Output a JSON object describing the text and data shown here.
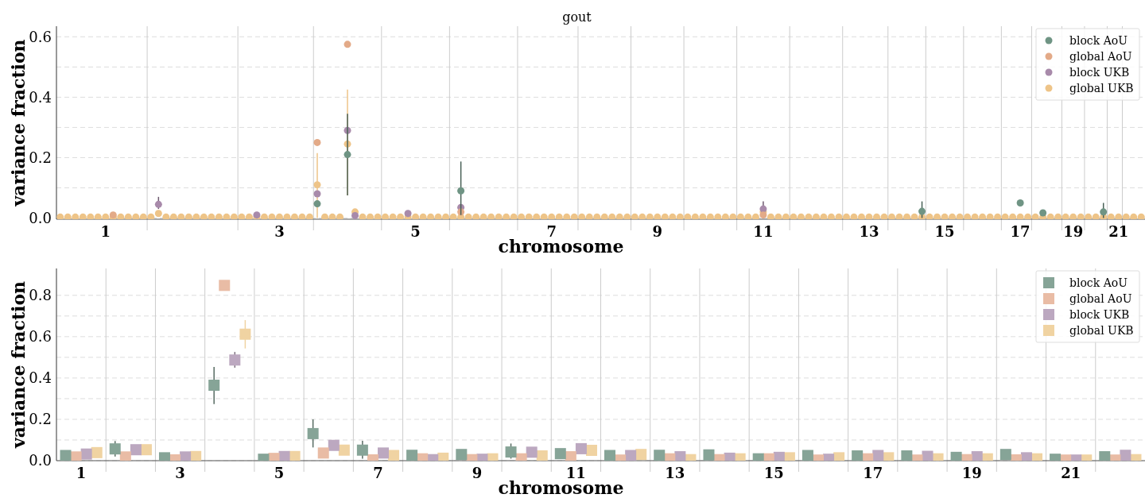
{
  "chart_data": [
    {
      "type": "scatter",
      "title": "gout",
      "xlabel": "chromosome",
      "ylabel": "variance fraction",
      "marker": "circle",
      "legend": "top right",
      "grid": "y",
      "categories": [
        null,
        null,
        null,
        null,
        null,
        null,
        "1",
        null,
        null,
        null,
        null,
        null,
        null,
        null,
        null,
        null,
        null,
        null,
        null,
        null,
        null,
        null,
        null,
        null,
        null,
        null,
        null,
        null,
        null,
        "3",
        null,
        null,
        null,
        null,
        null,
        null,
        null,
        null,
        null,
        null,
        null,
        null,
        null,
        null,
        null,
        null,
        null,
        "5",
        null,
        null,
        null,
        null,
        null,
        null,
        null,
        null,
        null,
        null,
        null,
        null,
        null,
        null,
        null,
        null,
        null,
        "7",
        null,
        null,
        null,
        null,
        null,
        null,
        null,
        null,
        null,
        null,
        null,
        null,
        null,
        "9",
        null,
        null,
        null,
        null,
        null,
        null,
        null,
        null,
        null,
        null,
        null,
        null,
        null,
        "11",
        null,
        null,
        null,
        null,
        null,
        null,
        null,
        null,
        null,
        null,
        null,
        null,
        null,
        "13",
        null,
        null,
        null,
        null,
        null,
        null,
        null,
        null,
        null,
        "15",
        null,
        null,
        null,
        null,
        null,
        null,
        null,
        null,
        null,
        "17",
        null,
        null,
        null,
        null,
        null,
        null,
        "19",
        null,
        null,
        null,
        null,
        null,
        "21",
        null,
        null,
        null
      ],
      "ylim": [
        -0.004,
        0.635
      ],
      "yticks": [
        {
          "value": 0,
          "label": "0.0"
        },
        {
          "value": 0.1,
          "label": null
        },
        {
          "value": 0.2,
          "label": "0.2"
        },
        {
          "value": 0.3,
          "label": null
        },
        {
          "value": 0.4,
          "label": "0.4"
        },
        {
          "value": 0.5,
          "label": null
        },
        {
          "value": 0.6,
          "label": "0.6"
        }
      ],
      "series": [
        {
          "name": "block AoU",
          "color": "#6f9484",
          "values": [
            null,
            null,
            null,
            null,
            null,
            null,
            null,
            null,
            null,
            null,
            null,
            null,
            null,
            null,
            null,
            null,
            null,
            null,
            null,
            null,
            null,
            null,
            null,
            null,
            null,
            null,
            null,
            null,
            null,
            null,
            null,
            null,
            null,
            null,
            0.047,
            null,
            null,
            null,
            0.21,
            null,
            null,
            null,
            null,
            null,
            null,
            null,
            null,
            null,
            null,
            null,
            null,
            null,
            null,
            0.09,
            null,
            null,
            null,
            null,
            null,
            null,
            null,
            null,
            null,
            null,
            null,
            null,
            null,
            null,
            null,
            null,
            null,
            null,
            null,
            null,
            null,
            null,
            null,
            null,
            null,
            null,
            null,
            null,
            null,
            null,
            null,
            null,
            null,
            null,
            null,
            null,
            null,
            null,
            null,
            null,
            null,
            null,
            null,
            null,
            null,
            null,
            null,
            null,
            null,
            null,
            null,
            null,
            null,
            null,
            null,
            null,
            null,
            null,
            null,
            null,
            0.022,
            null,
            null,
            null,
            null,
            null,
            null,
            null,
            null,
            null,
            null,
            null,
            null,
            0.05,
            null,
            null,
            0.017,
            null,
            null,
            null,
            null,
            null,
            null,
            null,
            0.02,
            null,
            null,
            null,
            null,
            null
          ],
          "errors": [
            null,
            null,
            null,
            null,
            null,
            null,
            null,
            null,
            null,
            null,
            null,
            null,
            null,
            null,
            null,
            null,
            null,
            null,
            null,
            null,
            null,
            null,
            null,
            null,
            null,
            null,
            null,
            null,
            null,
            null,
            null,
            null,
            null,
            null,
            null,
            null,
            null,
            null,
            [
              0.075,
              0.345
            ],
            null,
            null,
            null,
            null,
            null,
            null,
            null,
            null,
            null,
            null,
            null,
            null,
            null,
            null,
            [
              0.01,
              0.187
            ],
            null,
            null,
            null,
            null,
            null,
            null,
            null,
            null,
            null,
            null,
            null,
            null,
            null,
            null,
            null,
            null,
            null,
            null,
            null,
            null,
            null,
            null,
            null,
            null,
            null,
            null,
            null,
            null,
            null,
            null,
            null,
            null,
            null,
            null,
            null,
            null,
            null,
            null,
            null,
            null,
            null,
            null,
            null,
            null,
            null,
            null,
            null,
            null,
            null,
            null,
            null,
            null,
            null,
            null,
            null,
            null,
            null,
            null,
            null,
            null,
            [
              0,
              0.055
            ],
            null,
            null,
            null,
            null,
            null,
            null,
            null,
            null,
            null,
            null,
            null,
            null,
            null,
            null,
            null,
            null,
            null,
            null,
            null,
            null,
            null,
            null,
            null,
            [
              0,
              0.05
            ],
            null,
            null,
            null,
            null,
            null
          ]
        },
        {
          "name": "global AoU",
          "color": "#e3aa88",
          "values": [
            null,
            null,
            null,
            null,
            null,
            null,
            null,
            0.01,
            null,
            null,
            null,
            null,
            null,
            null,
            null,
            null,
            null,
            null,
            null,
            null,
            null,
            null,
            null,
            null,
            null,
            null,
            null,
            null,
            null,
            null,
            null,
            null,
            null,
            null,
            0.25,
            null,
            null,
            null,
            0.575,
            null,
            null,
            null,
            null,
            null,
            null,
            null,
            null,
            null,
            null,
            null,
            null,
            null,
            null,
            0.02,
            null,
            null,
            null,
            null,
            null,
            null,
            null,
            null,
            null,
            null,
            null,
            null,
            null,
            null,
            null,
            null,
            null,
            null,
            null,
            null,
            null,
            null,
            null,
            null,
            null,
            null,
            null,
            null,
            null,
            null,
            null,
            null,
            null,
            null,
            null,
            null,
            null,
            null,
            null,
            0.01,
            null,
            null,
            null,
            null,
            null,
            null,
            null,
            null,
            null,
            null,
            null,
            null,
            null,
            null,
            null,
            null,
            null,
            null,
            null,
            null,
            null,
            null,
            null,
            null,
            null,
            null,
            null,
            null,
            null,
            null,
            null,
            null,
            null,
            null,
            null,
            null,
            null,
            null,
            null,
            null,
            null,
            null,
            null,
            null,
            null,
            null,
            null,
            null,
            null,
            null
          ]
        },
        {
          "name": "block UKB",
          "color": "#a88aaa",
          "values": [
            null,
            null,
            null,
            null,
            null,
            null,
            null,
            null,
            null,
            null,
            null,
            null,
            null,
            0.045,
            null,
            null,
            null,
            null,
            null,
            null,
            null,
            null,
            null,
            null,
            null,
            null,
            0.01,
            null,
            null,
            null,
            null,
            null,
            null,
            null,
            0.08,
            null,
            null,
            null,
            0.29,
            0.008,
            null,
            null,
            null,
            null,
            null,
            null,
            0.015,
            null,
            null,
            null,
            null,
            null,
            null,
            0.035,
            null,
            null,
            null,
            null,
            null,
            null,
            null,
            null,
            null,
            null,
            null,
            null,
            null,
            null,
            null,
            null,
            null,
            null,
            null,
            null,
            null,
            null,
            null,
            null,
            null,
            null,
            null,
            null,
            null,
            null,
            null,
            null,
            null,
            null,
            null,
            null,
            null,
            null,
            null,
            0.03,
            null,
            null,
            null,
            null,
            null,
            null,
            null,
            null,
            null,
            null,
            null,
            null,
            null,
            null,
            null,
            null,
            null,
            null,
            null,
            null,
            null,
            null,
            null,
            null,
            null,
            null,
            null,
            null,
            null,
            null,
            null,
            null,
            null,
            null,
            null,
            null,
            null,
            null,
            null,
            null,
            null,
            null,
            null,
            null,
            null,
            null,
            null,
            null,
            null,
            null
          ],
          "errors": [
            null,
            null,
            null,
            null,
            null,
            null,
            null,
            null,
            null,
            null,
            null,
            null,
            null,
            [
              0.03,
              0.07
            ],
            null,
            null,
            null,
            null,
            null,
            null,
            null,
            null,
            null,
            null,
            null,
            null,
            null,
            null,
            null,
            null,
            null,
            null,
            null,
            null,
            null,
            null,
            null,
            null,
            null,
            null,
            null,
            null,
            null,
            null,
            null,
            null,
            null,
            null,
            null,
            null,
            null,
            null,
            null,
            null,
            null,
            null,
            null,
            null,
            null,
            null,
            null,
            null,
            null,
            null,
            null,
            null,
            null,
            null,
            null,
            null,
            null,
            null,
            null,
            null,
            null,
            null,
            null,
            null,
            null,
            null,
            null,
            null,
            null,
            null,
            null,
            null,
            null,
            null,
            null,
            null,
            null,
            null,
            null,
            [
              0.01,
              0.055
            ],
            null,
            null,
            null,
            null,
            null,
            null,
            null,
            null,
            null,
            null,
            null,
            null,
            null,
            null,
            null,
            null,
            null,
            null,
            null,
            null,
            null,
            null,
            null,
            null,
            null,
            null,
            null,
            null,
            null,
            null,
            null,
            null,
            null,
            null,
            null,
            null,
            null,
            null,
            null,
            null,
            null,
            null,
            null,
            null,
            null,
            null,
            null,
            null,
            null,
            null
          ]
        },
        {
          "name": "global UKB",
          "color": "#eec488",
          "values": [
            0.003,
            0.003,
            0.003,
            0.003,
            0.003,
            0.003,
            0.003,
            0.003,
            0.003,
            0.003,
            0.003,
            0.003,
            0.003,
            0.015,
            0.003,
            0.003,
            0.003,
            0.003,
            0.003,
            0.003,
            0.003,
            0.003,
            0.003,
            0.003,
            0.003,
            0.003,
            0.003,
            0.003,
            0.003,
            0.003,
            0.003,
            0.003,
            0.003,
            0.003,
            0.11,
            0.003,
            0.003,
            0.003,
            0.245,
            0.02,
            0.003,
            0.003,
            0.003,
            0.003,
            0.003,
            0.003,
            0.003,
            0.003,
            0.003,
            0.003,
            0.003,
            0.003,
            0.003,
            0.003,
            0.003,
            0.003,
            0.003,
            0.003,
            0.003,
            0.003,
            0.003,
            0.003,
            0.003,
            0.003,
            0.003,
            0.003,
            0.003,
            0.003,
            0.003,
            0.003,
            0.003,
            0.003,
            0.003,
            0.003,
            0.003,
            0.003,
            0.003,
            0.003,
            0.003,
            0.003,
            0.003,
            0.003,
            0.003,
            0.003,
            0.003,
            0.003,
            0.003,
            0.003,
            0.003,
            0.003,
            0.003,
            0.003,
            0.003,
            0.02,
            0.003,
            0.003,
            0.003,
            0.003,
            0.003,
            0.003,
            0.003,
            0.003,
            0.003,
            0.003,
            0.003,
            0.003,
            0.003,
            0.003,
            0.003,
            0.003,
            0.003,
            0.003,
            0.003,
            0.003,
            0.003,
            0.003,
            0.003,
            0.003,
            0.003,
            0.003,
            0.003,
            0.003,
            0.003,
            0.003,
            0.003,
            0.003,
            0.003,
            0.003,
            0.003,
            0.003,
            0.003,
            0.003,
            0.003,
            0.003,
            0.003,
            0.003,
            0.003,
            0.003,
            0.003,
            0.003,
            0.003,
            0.003,
            0.003,
            0.003
          ],
          "errors": [
            null,
            null,
            null,
            null,
            null,
            null,
            null,
            null,
            null,
            null,
            null,
            null,
            null,
            null,
            null,
            null,
            null,
            null,
            null,
            null,
            null,
            null,
            null,
            null,
            null,
            null,
            null,
            null,
            null,
            null,
            null,
            null,
            null,
            null,
            [
              0,
              0.215
            ],
            null,
            null,
            null,
            [
              0.075,
              0.425
            ],
            null,
            null,
            null,
            null,
            null,
            null,
            null,
            null,
            null,
            null,
            null,
            null,
            null,
            null,
            null,
            null,
            null,
            null,
            null,
            null,
            null,
            null,
            null,
            null,
            null,
            null,
            null,
            null,
            null,
            null,
            null,
            null,
            null,
            null,
            null,
            null,
            null,
            null,
            null,
            null,
            null,
            null,
            null,
            null,
            null,
            null,
            null,
            null,
            null,
            null,
            null,
            null,
            null,
            null,
            null,
            null,
            null,
            null,
            null,
            null,
            null,
            null,
            null,
            null,
            null,
            null,
            null,
            null,
            null,
            null,
            null,
            null,
            null,
            null,
            null,
            null,
            null,
            null,
            null,
            null,
            null,
            null,
            null,
            null,
            null,
            null,
            null,
            null,
            null,
            null,
            null,
            null,
            null,
            null,
            null,
            null,
            null,
            null,
            null,
            null,
            null,
            null,
            null,
            null,
            null
          ]
        }
      ]
    },
    {
      "type": "scatter",
      "xlabel": "chromosome",
      "ylabel": "variance fraction",
      "marker": "square",
      "legend": "top right",
      "grid": true,
      "categories": [
        "1",
        null,
        "3",
        null,
        "5",
        null,
        "7",
        null,
        "9",
        null,
        "11",
        null,
        "13",
        null,
        "15",
        null,
        "17",
        null,
        "19",
        null,
        "21",
        null
      ],
      "ylim": [
        0,
        0.93
      ],
      "yticks": [
        {
          "value": 0,
          "label": "0.0"
        },
        {
          "value": 0.1,
          "label": null
        },
        {
          "value": 0.2,
          "label": "0.2"
        },
        {
          "value": 0.3,
          "label": null
        },
        {
          "value": 0.4,
          "label": "0.4"
        },
        {
          "value": 0.5,
          "label": null
        },
        {
          "value": 0.6,
          "label": "0.6"
        },
        {
          "value": 0.7,
          "label": null
        },
        {
          "value": 0.8,
          "label": "0.8"
        }
      ],
      "series": [
        {
          "name": "block AoU",
          "color": "#86a497",
          "values": [
            0.025,
            0.057,
            0.014,
            0.365,
            0.007,
            0.131,
            0.051,
            0.026,
            0.03,
            0.042,
            0.034,
            0.025,
            0.026,
            0.028,
            0.009,
            0.025,
            0.023,
            0.023,
            0.016,
            0.03,
            0.007,
            0.019
          ],
          "errors": [
            null,
            [
              0.02,
              0.095
            ],
            null,
            [
              0.274,
              0.453
            ],
            null,
            [
              0.064,
              0.2
            ],
            [
              0.01,
              0.096
            ],
            null,
            null,
            [
              0.01,
              0.083
            ],
            null,
            null,
            null,
            null,
            null,
            null,
            null,
            null,
            null,
            null,
            null,
            null
          ]
        },
        {
          "name": "global AoU",
          "color": "#e9bca5",
          "values": [
            0.018,
            0.018,
            0.004,
            0.848,
            0.011,
            0.037,
            0.004,
            0.009,
            0.005,
            0.009,
            0.019,
            0.003,
            0.009,
            0.005,
            0.009,
            0.003,
            0.009,
            0.003,
            0.005,
            0.004,
            0.003,
            0.003
          ]
        },
        {
          "name": "block UKB",
          "color": "#bca8c0",
          "values": [
            0.032,
            0.053,
            0.018,
            0.487,
            0.02,
            0.074,
            0.037,
            0.005,
            0.007,
            0.041,
            0.058,
            0.025,
            0.019,
            0.012,
            0.016,
            0.007,
            0.025,
            0.021,
            0.019,
            0.014,
            0.003,
            0.026
          ],
          "errors": [
            null,
            null,
            null,
            [
              0.45,
              0.526
            ],
            null,
            null,
            null,
            null,
            null,
            null,
            null,
            null,
            null,
            null,
            null,
            null,
            null,
            null,
            null,
            null,
            null,
            null
          ]
        },
        {
          "name": "global UKB",
          "color": "#f0d3a2",
          "values": [
            0.039,
            0.053,
            0.02,
            0.612,
            0.02,
            0.051,
            0.025,
            0.012,
            0.009,
            0.023,
            0.05,
            0.03,
            0.005,
            0.009,
            0.014,
            0.014,
            0.014,
            0.009,
            0.009,
            0.009,
            0.003,
            0.005
          ],
          "errors": [
            null,
            null,
            null,
            [
              0.543,
              0.68
            ],
            null,
            null,
            null,
            null,
            null,
            null,
            null,
            null,
            null,
            null,
            null,
            null,
            null,
            null,
            null,
            null,
            null,
            null
          ]
        }
      ]
    }
  ]
}
